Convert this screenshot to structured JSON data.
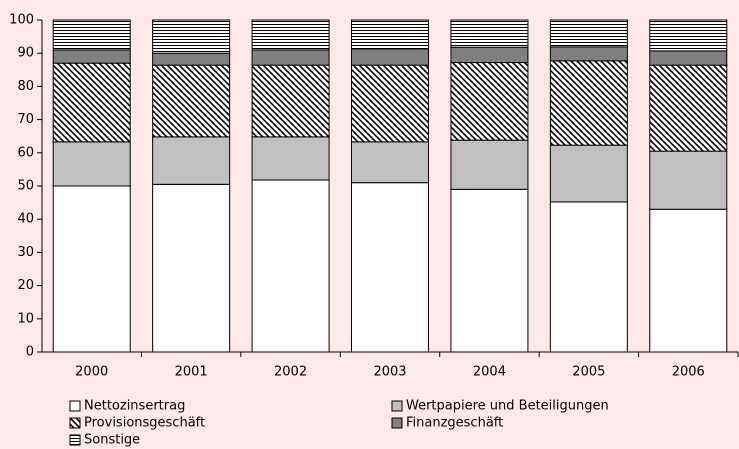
{
  "chart_data": {
    "type": "stacked_bar",
    "categories": [
      "2000",
      "2001",
      "2002",
      "2003",
      "2004",
      "2005",
      "2006"
    ],
    "series": [
      {
        "name": "Nettozinsertrag",
        "color": "#ffffff",
        "pattern": "solid",
        "values": [
          50,
          50.5,
          51.8,
          51,
          49,
          45.2,
          43
        ]
      },
      {
        "name": "Wertpapiere und Beteiligungen",
        "color": "#c0c0c0",
        "pattern": "solid",
        "values": [
          13.3,
          14.3,
          13,
          12.3,
          14.8,
          17.1,
          17.5
        ]
      },
      {
        "name": "Provisionsgeschäft",
        "color": "#000000",
        "pattern": "diagonal",
        "values": [
          23.7,
          21.6,
          21.6,
          23.1,
          23.4,
          25.4,
          25.9
        ]
      },
      {
        "name": "Finanzgeschäft",
        "color": "#808080",
        "pattern": "solid",
        "values": [
          4,
          3.6,
          4.6,
          4.9,
          4.6,
          4.2,
          4.3
        ]
      },
      {
        "name": "Sonstige",
        "color": "#000000",
        "pattern": "horizontal",
        "values": [
          9,
          10,
          9,
          8.7,
          8.2,
          8.1,
          9.3
        ]
      }
    ],
    "ylim": [
      0,
      100
    ],
    "yticks": [
      0,
      10,
      20,
      30,
      40,
      50,
      60,
      70,
      80,
      90,
      100
    ],
    "grid": false
  }
}
